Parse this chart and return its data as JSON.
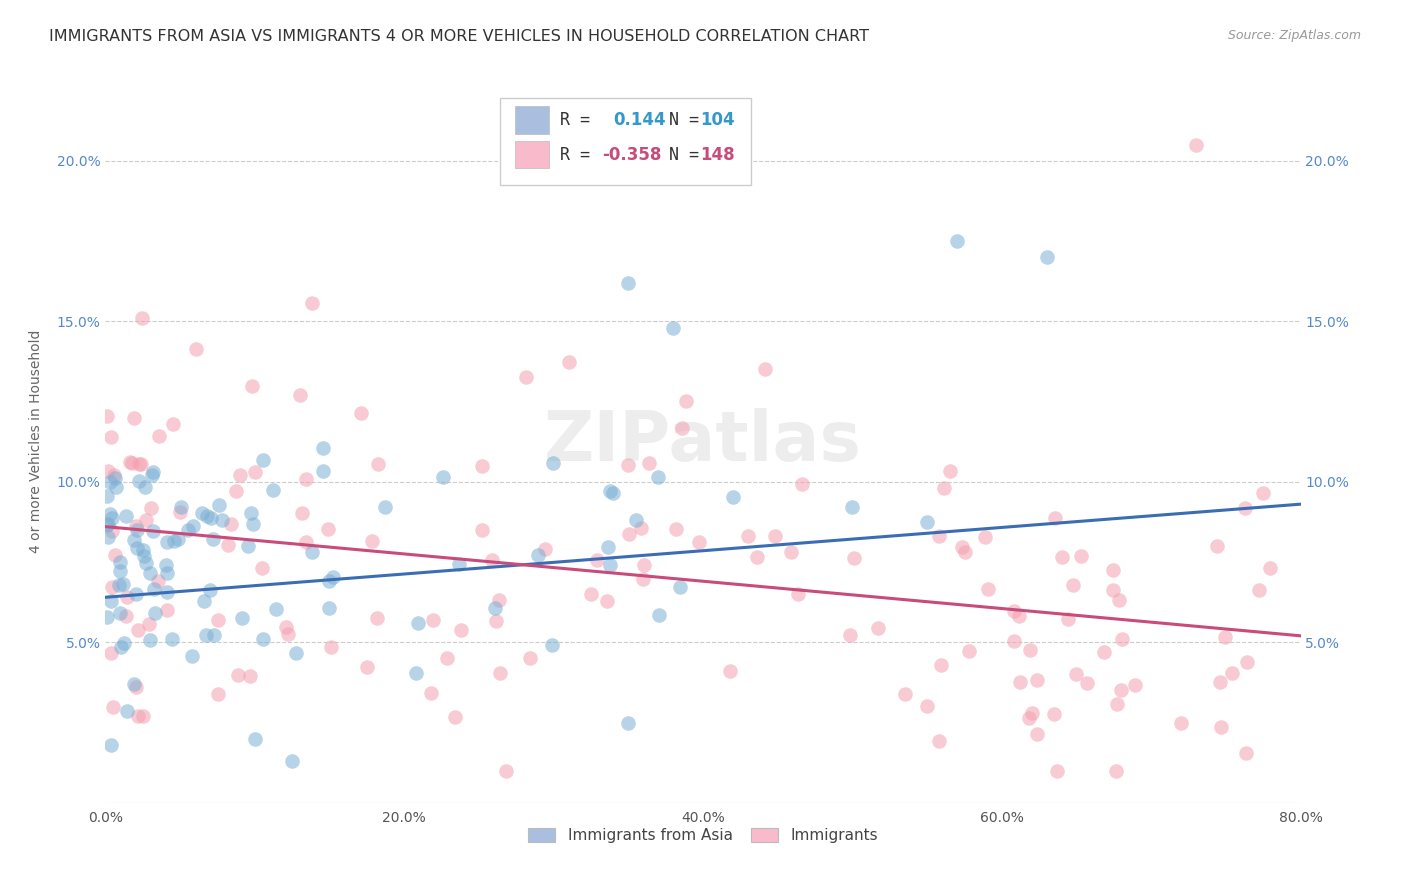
{
  "title": "IMMIGRANTS FROM ASIA VS IMMIGRANTS 4 OR MORE VEHICLES IN HOUSEHOLD CORRELATION CHART",
  "source": "Source: ZipAtlas.com",
  "ylabel": "4 or more Vehicles in Household",
  "legend_labels": [
    "Immigrants from Asia",
    "Immigrants"
  ],
  "blue_R": 0.144,
  "blue_N": 104,
  "pink_R": -0.358,
  "pink_N": 148,
  "xlim": [
    0.0,
    0.8
  ],
  "ylim_plot": [
    0.0,
    0.225
  ],
  "xticks": [
    0.0,
    0.2,
    0.4,
    0.6,
    0.8
  ],
  "yticks": [
    0.05,
    0.1,
    0.15,
    0.2
  ],
  "xtick_labels": [
    "0.0%",
    "20.0%",
    "40.0%",
    "60.0%",
    "80.0%"
  ],
  "ytick_labels": [
    "5.0%",
    "10.0%",
    "15.0%",
    "20.0%"
  ],
  "blue_scatter_color": "#7BAFD4",
  "pink_scatter_color": "#F4A0B0",
  "blue_line_color": "#3B6DB5",
  "pink_line_color": "#C84B7A",
  "background_color": "#FFFFFF",
  "watermark": "ZIPatlas",
  "title_fontsize": 11.5,
  "ylabel_fontsize": 10,
  "tick_fontsize": 10,
  "legend_blue_box": "#AABFE0",
  "legend_pink_box": "#F9BBCC",
  "grid_color": "#CCCCCC",
  "title_color": "#333333",
  "source_color": "#999999",
  "ytick_color": "#5588CC",
  "blue_line_y0": 0.064,
  "blue_line_y1": 0.093,
  "pink_line_y0": 0.086,
  "pink_line_y1": 0.052
}
